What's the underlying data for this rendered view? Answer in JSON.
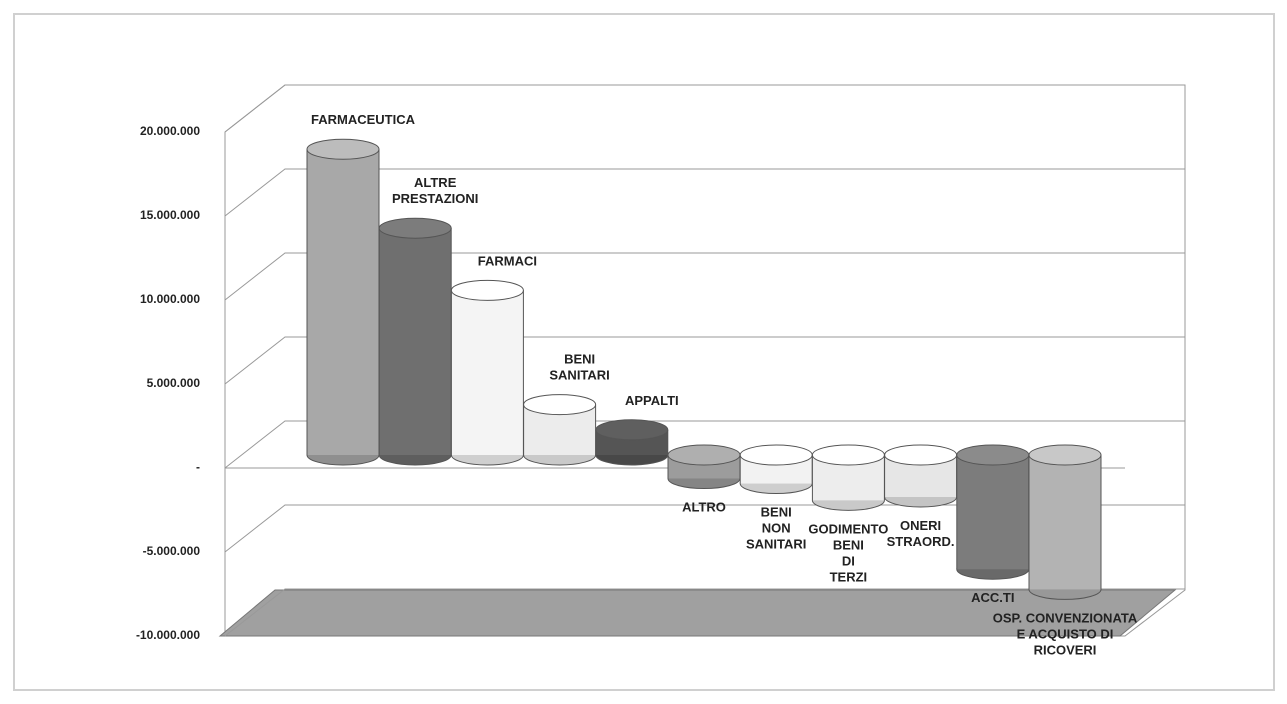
{
  "chart_data": {
    "type": "bar3d",
    "categories": [
      [
        "FARMACEUTICA"
      ],
      [
        "ALTRE",
        "PRESTAZIONI"
      ],
      [
        "FARMACI"
      ],
      [
        "BENI",
        "SANITARI"
      ],
      [
        "APPALTI"
      ],
      [
        "ALTRO"
      ],
      [
        "BENI",
        "NON",
        "SANITARI"
      ],
      [
        "GODIMENTO",
        "BENI",
        "DI",
        "TERZI"
      ],
      [
        "ONERI",
        "STRAORD."
      ],
      [
        "ACC.TI"
      ],
      [
        "OSP. CONVENZIONATA",
        "E ACQUISTO DI",
        "RICOVERI"
      ]
    ],
    "values": [
      18200000,
      13500000,
      9800000,
      3000000,
      1500000,
      -1400000,
      -1700000,
      -2700000,
      -2500000,
      -6800000,
      -8000000
    ],
    "colors": [
      "#a8a8a8",
      "#6f6f6f",
      "#f4f4f4",
      "#ececec",
      "#555555",
      "#9c9c9c",
      "#f2f2f2",
      "#ededed",
      "#e6e6e6",
      "#7c7c7c",
      "#b3b3b3"
    ],
    "ylim": [
      -10000000,
      20000000
    ],
    "yticks": [
      {
        "value": -10000000,
        "label": "-10.000.000"
      },
      {
        "value": -5000000,
        "label": "-5.000.000"
      },
      {
        "value": 0,
        "label": "-"
      },
      {
        "value": 5000000,
        "label": "5.000.000"
      },
      {
        "value": 10000000,
        "label": "10.000.000"
      },
      {
        "value": 15000000,
        "label": "15.000.000"
      },
      {
        "value": 20000000,
        "label": "20.000.000"
      }
    ],
    "grid": true
  }
}
